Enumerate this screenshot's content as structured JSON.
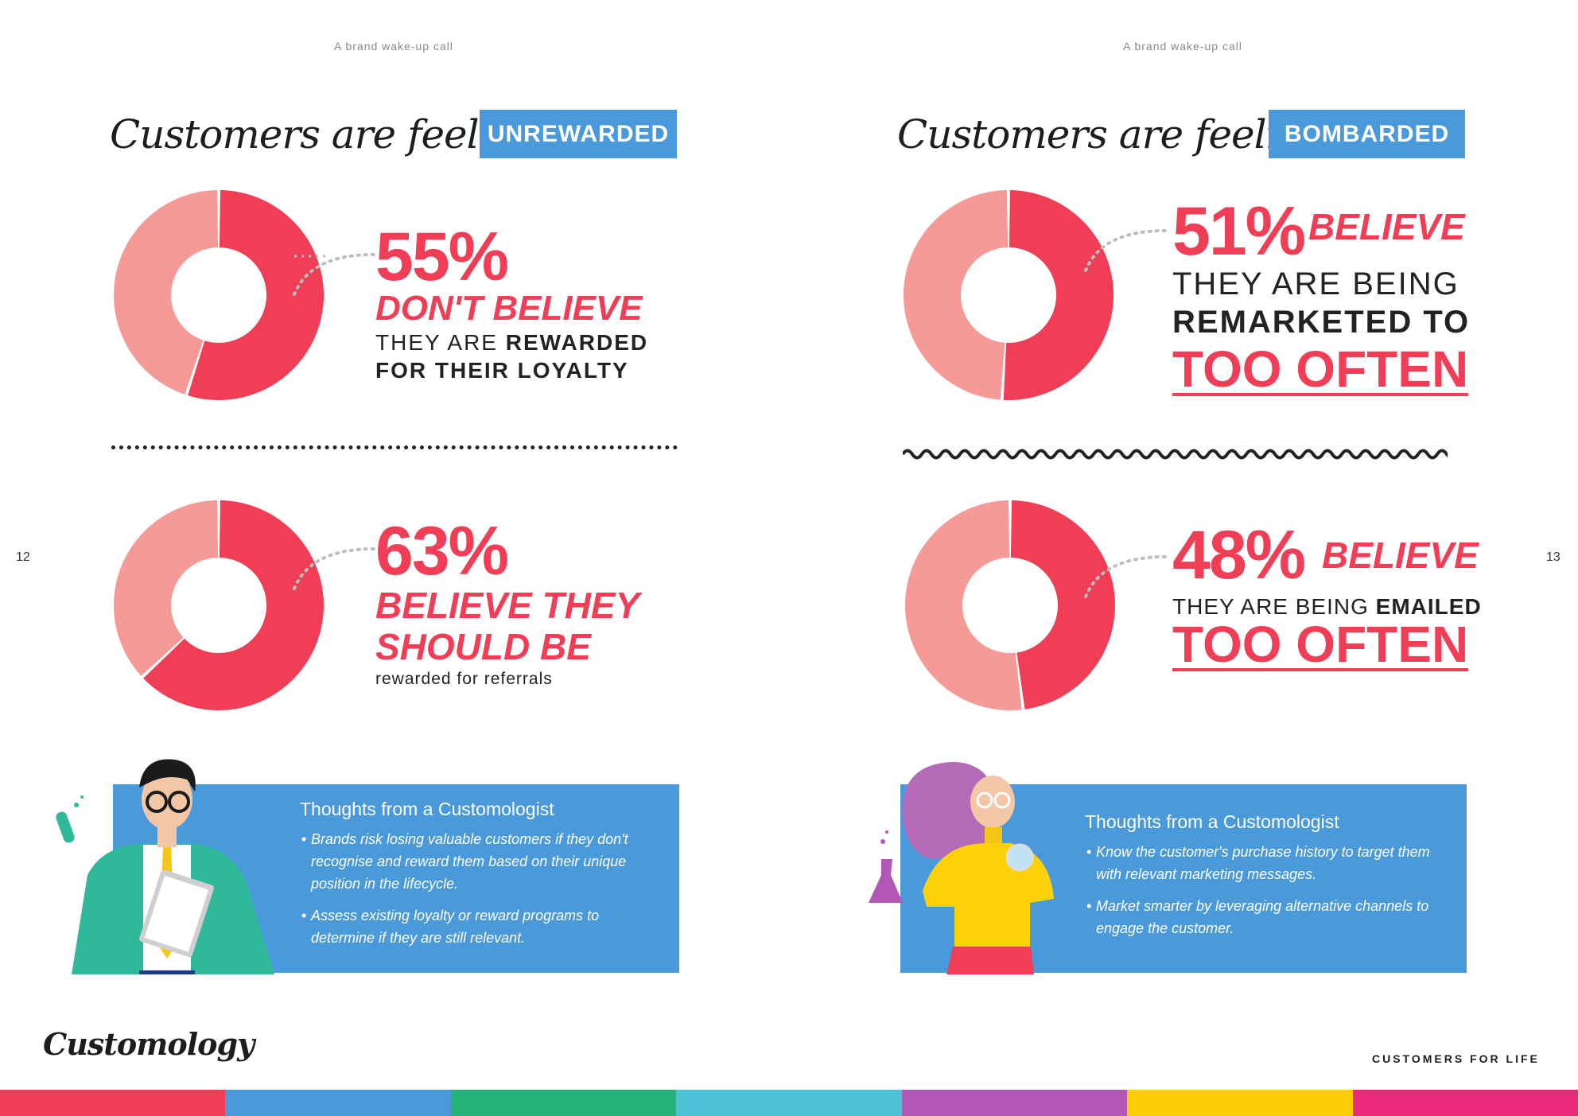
{
  "running_head": "A brand wake-up call",
  "script_heading": "Customers are feeling...",
  "left": {
    "tag": "UNREWARDED",
    "stat1": {
      "value": "55%",
      "line1": "DON'T BELIEVE",
      "line2_light": "THEY ARE ",
      "line2_bold": "REWARDED",
      "line3": "FOR THEIR LOYALTY"
    },
    "stat2": {
      "value": "63%",
      "line1": "BELIEVE THEY",
      "line2": "SHOULD BE",
      "line3": "rewarded for referrals"
    },
    "thoughts": {
      "title": "Thoughts from a Customologist",
      "items": [
        "Brands risk losing valuable customers if they don't recognise and reward them based on their unique position in the lifecycle.",
        "Assess existing loyalty or reward programs to determine if they are still relevant."
      ]
    },
    "page_number": "12"
  },
  "right": {
    "tag": "BOMBARDED",
    "stat1": {
      "value": "51%",
      "word": "BELIEVE",
      "line2": "THEY ARE BEING",
      "line3": "REMARKETED TO",
      "line4": "TOO OFTEN"
    },
    "stat2": {
      "value": "48%",
      "word": "BELIEVE",
      "line2_light": "THEY ARE BEING ",
      "line2_bold": "EMAILED",
      "line3": "TOO OFTEN"
    },
    "thoughts": {
      "title": "Thoughts from a Customologist",
      "items": [
        "Know the customer's purchase history to target them with relevant marketing messages.",
        "Market smarter by leveraging alternative channels to engage the customer."
      ]
    },
    "page_number": "13"
  },
  "chart_data": [
    {
      "type": "pie",
      "categories": [
        "don't believe",
        "other"
      ],
      "values": [
        55,
        45
      ]
    },
    {
      "type": "pie",
      "categories": [
        "believe they should be",
        "other"
      ],
      "values": [
        63,
        37
      ]
    },
    {
      "type": "pie",
      "categories": [
        "believe",
        "other"
      ],
      "values": [
        51,
        49
      ]
    },
    {
      "type": "pie",
      "categories": [
        "believe",
        "other"
      ],
      "values": [
        48,
        52
      ]
    }
  ],
  "footer": {
    "logo": "Customology",
    "tagline": "CUSTOMERS FOR LIFE"
  },
  "colors": {
    "accent_red": "#ef3e55",
    "light_pink": "#f59a97",
    "blue": "#4a9adb",
    "stripes": [
      "#ef3e55",
      "#4a9adb",
      "#25b37c",
      "#4fc3d6",
      "#b257b5",
      "#fecb07",
      "#ec2a7c"
    ]
  }
}
